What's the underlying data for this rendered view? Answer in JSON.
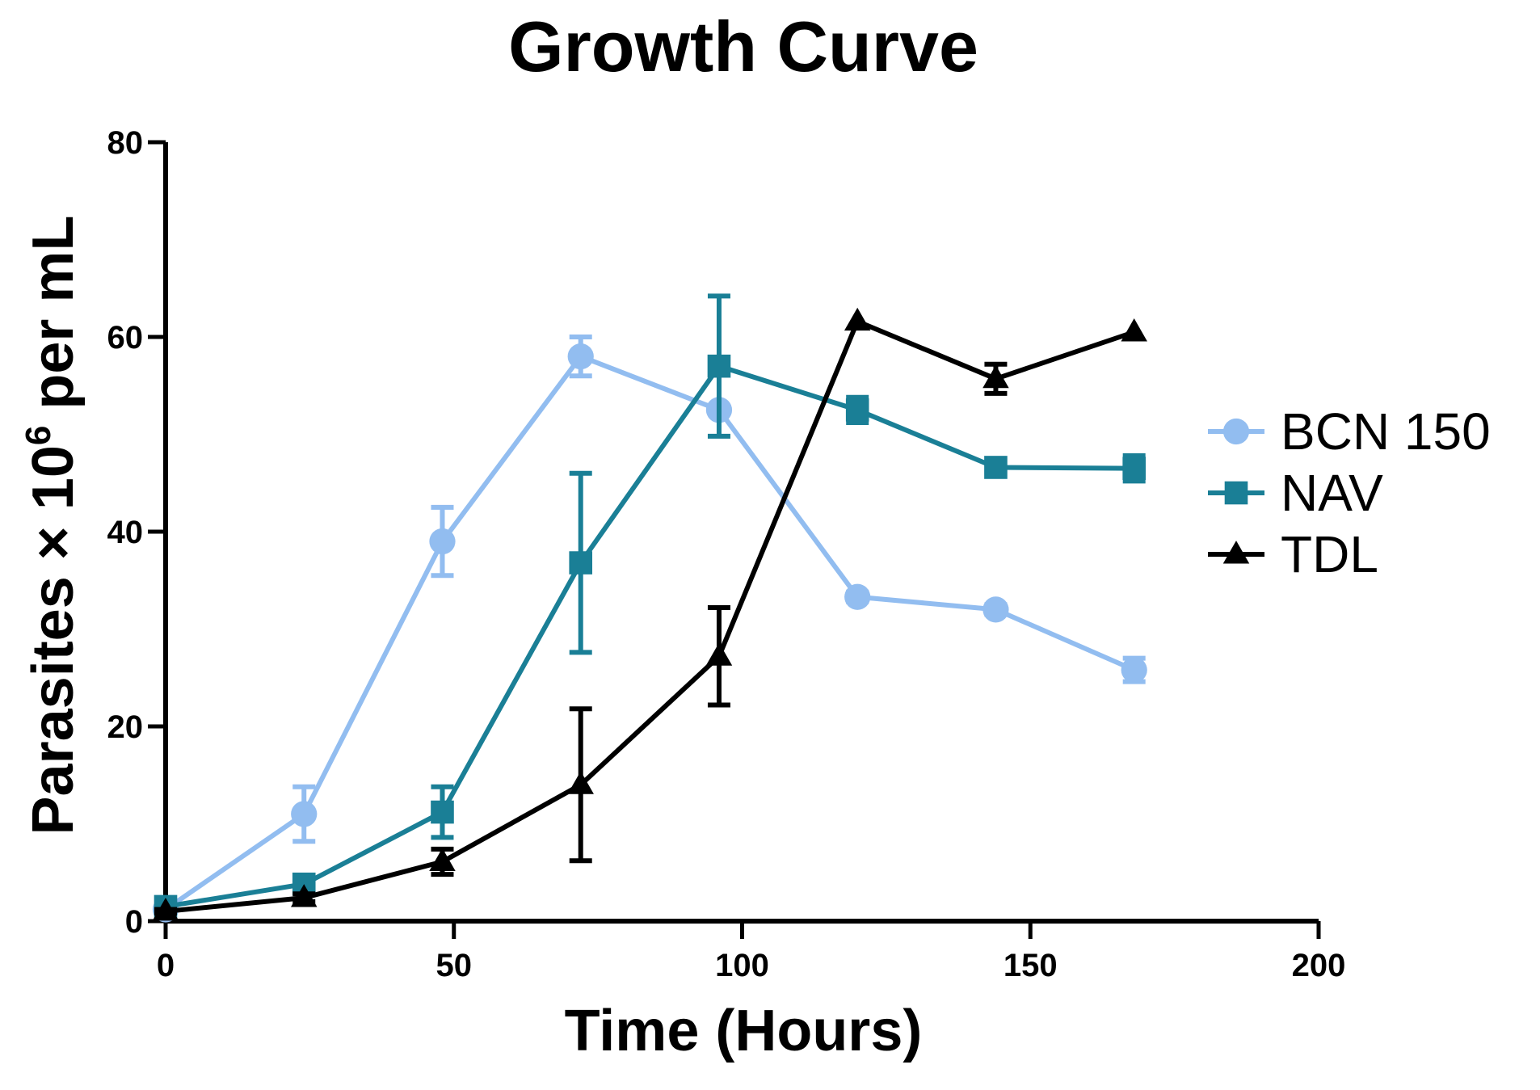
{
  "chart_data": {
    "type": "line",
    "title": "Growth Curve",
    "xlabel": "Time (Hours)",
    "ylabel_prefix": "Parasites × 10",
    "ylabel_exponent": "6",
    "ylabel_suffix": " per mL",
    "xlim": [
      0,
      200
    ],
    "ylim": [
      0,
      80
    ],
    "xticks": [
      0,
      50,
      100,
      150,
      200
    ],
    "yticks": [
      0,
      20,
      40,
      60,
      80
    ],
    "x": [
      0,
      24,
      48,
      72,
      96,
      120,
      144,
      168
    ],
    "legend_position": "right",
    "grid": false,
    "series": [
      {
        "name": "BCN 150",
        "color": "#92bdf0",
        "marker": "circle",
        "values": [
          1.2,
          11,
          39,
          58,
          52.5,
          33.3,
          32,
          25.8
        ],
        "errors": [
          0.3,
          2.8,
          3.5,
          2.0,
          0,
          0.5,
          0.5,
          1.2
        ]
      },
      {
        "name": "NAV",
        "color": "#1a7f96",
        "marker": "square",
        "values": [
          1.5,
          3.8,
          11.2,
          36.8,
          57.0,
          52.5,
          46.6,
          46.5
        ],
        "errors": [
          0.3,
          0.5,
          2.6,
          9.2,
          7.2,
          1.3,
          0.5,
          1.3
        ]
      },
      {
        "name": "TDL",
        "color": "#000000",
        "marker": "triangle",
        "values": [
          1.0,
          2.4,
          6.1,
          14.0,
          27.2,
          61.6,
          55.7,
          60.5
        ],
        "errors": [
          0.2,
          0.4,
          1.3,
          7.8,
          5.0,
          0,
          1.5,
          0
        ]
      }
    ]
  }
}
